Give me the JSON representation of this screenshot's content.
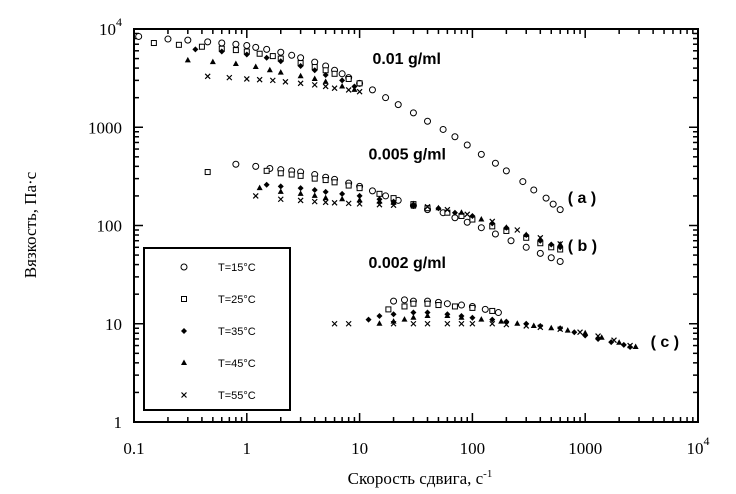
{
  "chart_data": {
    "type": "scatter",
    "xscale": "log",
    "yscale": "log",
    "xlim": [
      0.1,
      10000
    ],
    "ylim": [
      1,
      10000
    ],
    "xlabel": "Скорость сдвига, с",
    "xlabel_exp": "-1",
    "ylabel": "Вязкость, Па·с",
    "x_ticks": [
      {
        "value": 0.1,
        "label": "0.1"
      },
      {
        "value": 1,
        "label": "1"
      },
      {
        "value": 10,
        "label": "10"
      },
      {
        "value": 100,
        "label": "100"
      },
      {
        "value": 1000,
        "label": "1000"
      },
      {
        "value": 10000,
        "label": "10",
        "exp": "4"
      }
    ],
    "y_ticks": [
      {
        "value": 1,
        "label": "1"
      },
      {
        "value": 10,
        "label": "10"
      },
      {
        "value": 100,
        "label": "100"
      },
      {
        "value": 1000,
        "label": "1000"
      },
      {
        "value": 10000,
        "label": "10",
        "exp": "4"
      }
    ],
    "legend_position": "lower-left",
    "annotations": [
      {
        "text": "0.01   g/ml",
        "x": 13,
        "y": 4400
      },
      {
        "text": "0.005   g/ml",
        "x": 12,
        "y": 470
      },
      {
        "text": "0.002   g/ml",
        "x": 12,
        "y": 37
      },
      {
        "text": "( a )",
        "x": 700,
        "y": 170
      },
      {
        "text": "( b )",
        "x": 700,
        "y": 55
      },
      {
        "text": "( c )",
        "x": 3800,
        "y": 5.8
      }
    ],
    "series": [
      {
        "name": "T=15°C",
        "marker": "circle",
        "points": [
          [
            0.11,
            8400
          ],
          [
            0.2,
            7900
          ],
          [
            0.3,
            7700
          ],
          [
            0.45,
            7400
          ],
          [
            0.6,
            7200
          ],
          [
            0.8,
            7000
          ],
          [
            1.0,
            6800
          ],
          [
            1.2,
            6500
          ],
          [
            1.5,
            6200
          ],
          [
            2,
            5800
          ],
          [
            2.5,
            5400
          ],
          [
            3,
            5100
          ],
          [
            4,
            4600
          ],
          [
            5,
            4200
          ],
          [
            6,
            3800
          ],
          [
            7,
            3500
          ],
          [
            8,
            3200
          ],
          [
            10,
            2800
          ],
          [
            13,
            2400
          ],
          [
            17,
            2000
          ],
          [
            22,
            1700
          ],
          [
            30,
            1400
          ],
          [
            40,
            1150
          ],
          [
            55,
            950
          ],
          [
            70,
            800
          ],
          [
            90,
            660
          ],
          [
            120,
            530
          ],
          [
            160,
            430
          ],
          [
            200,
            360
          ],
          [
            280,
            280
          ],
          [
            350,
            230
          ],
          [
            450,
            190
          ],
          [
            520,
            165
          ],
          [
            600,
            145
          ],
          [
            0.8,
            420
          ],
          [
            1.2,
            400
          ],
          [
            1.6,
            380
          ],
          [
            2,
            370
          ],
          [
            2.5,
            360
          ],
          [
            3,
            350
          ],
          [
            4,
            330
          ],
          [
            5,
            310
          ],
          [
            6,
            295
          ],
          [
            8,
            270
          ],
          [
            10,
            250
          ],
          [
            13,
            225
          ],
          [
            17,
            200
          ],
          [
            22,
            180
          ],
          [
            30,
            160
          ],
          [
            40,
            145
          ],
          [
            55,
            135
          ],
          [
            70,
            120
          ],
          [
            90,
            108
          ],
          [
            120,
            95
          ],
          [
            160,
            82
          ],
          [
            220,
            70
          ],
          [
            300,
            60
          ],
          [
            400,
            52
          ],
          [
            500,
            47
          ],
          [
            600,
            43
          ],
          [
            20,
            17
          ],
          [
            25,
            17.5
          ],
          [
            30,
            17
          ],
          [
            40,
            17
          ],
          [
            50,
            16.5
          ],
          [
            60,
            16
          ],
          [
            80,
            15.5
          ],
          [
            100,
            15
          ],
          [
            130,
            14
          ],
          [
            170,
            13
          ]
        ]
      },
      {
        "name": "T=25°C",
        "marker": "square",
        "points": [
          [
            0.15,
            7200
          ],
          [
            0.25,
            6900
          ],
          [
            0.4,
            6600
          ],
          [
            0.6,
            6300
          ],
          [
            0.8,
            6100
          ],
          [
            1.0,
            5900
          ],
          [
            1.3,
            5600
          ],
          [
            1.7,
            5300
          ],
          [
            2,
            5000
          ],
          [
            3,
            4500
          ],
          [
            4,
            4100
          ],
          [
            5,
            3800
          ],
          [
            6,
            3500
          ],
          [
            8,
            3100
          ],
          [
            10,
            2800
          ],
          [
            0.45,
            350
          ],
          [
            1.5,
            360
          ],
          [
            2,
            340
          ],
          [
            2.5,
            330
          ],
          [
            3,
            320
          ],
          [
            4,
            300
          ],
          [
            5,
            290
          ],
          [
            6,
            275
          ],
          [
            8,
            255
          ],
          [
            10,
            240
          ],
          [
            15,
            210
          ],
          [
            20,
            190
          ],
          [
            30,
            165
          ],
          [
            40,
            150
          ],
          [
            60,
            135
          ],
          [
            80,
            125
          ],
          [
            100,
            115
          ],
          [
            150,
            98
          ],
          [
            200,
            88
          ],
          [
            300,
            75
          ],
          [
            400,
            66
          ],
          [
            500,
            60
          ],
          [
            600,
            57
          ],
          [
            18,
            14
          ],
          [
            25,
            15
          ],
          [
            30,
            16
          ],
          [
            40,
            16
          ],
          [
            50,
            15.5
          ],
          [
            70,
            15
          ],
          [
            100,
            14.5
          ],
          [
            150,
            13.5
          ]
        ]
      },
      {
        "name": "T=35°C",
        "marker": "diamond",
        "points": [
          [
            0.35,
            6200
          ],
          [
            0.6,
            5900
          ],
          [
            1.0,
            5500
          ],
          [
            1.5,
            5100
          ],
          [
            2,
            4700
          ],
          [
            3,
            4200
          ],
          [
            4,
            3800
          ],
          [
            5,
            3400
          ],
          [
            7,
            3000
          ],
          [
            9,
            2600
          ],
          [
            1.5,
            260
          ],
          [
            2,
            250
          ],
          [
            3,
            240
          ],
          [
            4,
            230
          ],
          [
            5,
            220
          ],
          [
            7,
            210
          ],
          [
            10,
            200
          ],
          [
            15,
            185
          ],
          [
            20,
            175
          ],
          [
            30,
            160
          ],
          [
            50,
            150
          ],
          [
            70,
            135
          ],
          [
            100,
            125
          ],
          [
            150,
            105
          ],
          [
            200,
            95
          ],
          [
            300,
            80
          ],
          [
            400,
            70
          ],
          [
            500,
            64
          ],
          [
            600,
            60
          ],
          [
            12,
            11
          ],
          [
            15,
            12
          ],
          [
            20,
            12.5
          ],
          [
            30,
            13
          ],
          [
            40,
            13
          ],
          [
            60,
            12.5
          ],
          [
            80,
            12
          ],
          [
            100,
            11.5
          ],
          [
            150,
            11
          ],
          [
            200,
            10.5
          ],
          [
            300,
            10
          ],
          [
            400,
            9.5
          ],
          [
            600,
            9
          ],
          [
            800,
            8.2
          ],
          [
            1000,
            7.6
          ],
          [
            1300,
            7
          ],
          [
            1700,
            6.5
          ],
          [
            2200,
            6.1
          ],
          [
            2500,
            5.8
          ]
        ]
      },
      {
        "name": "T=45°C",
        "marker": "triangle",
        "points": [
          [
            0.3,
            4800
          ],
          [
            0.5,
            4600
          ],
          [
            0.8,
            4400
          ],
          [
            1.2,
            4100
          ],
          [
            1.6,
            3800
          ],
          [
            2,
            3600
          ],
          [
            3,
            3300
          ],
          [
            4,
            3100
          ],
          [
            5,
            2900
          ],
          [
            7,
            2600
          ],
          [
            9,
            2400
          ],
          [
            1.3,
            240
          ],
          [
            2,
            220
          ],
          [
            3,
            210
          ],
          [
            4,
            200
          ],
          [
            5,
            190
          ],
          [
            7,
            185
          ],
          [
            10,
            180
          ],
          [
            15,
            175
          ],
          [
            20,
            170
          ],
          [
            30,
            165
          ],
          [
            50,
            150
          ],
          [
            80,
            135
          ],
          [
            120,
            115
          ],
          [
            200,
            95
          ],
          [
            300,
            80
          ],
          [
            400,
            72
          ],
          [
            600,
            64
          ],
          [
            15,
            10
          ],
          [
            20,
            10.5
          ],
          [
            25,
            11
          ],
          [
            30,
            11.5
          ],
          [
            40,
            12
          ],
          [
            60,
            12
          ],
          [
            80,
            11.5
          ],
          [
            120,
            11
          ],
          [
            180,
            10.5
          ],
          [
            250,
            10
          ],
          [
            350,
            9.5
          ],
          [
            500,
            9
          ],
          [
            700,
            8.5
          ],
          [
            1000,
            8
          ],
          [
            1400,
            7.2
          ],
          [
            2000,
            6.4
          ],
          [
            2800,
            5.8
          ]
        ]
      },
      {
        "name": "T=55°C",
        "marker": "x",
        "points": [
          [
            0.45,
            3300
          ],
          [
            0.7,
            3200
          ],
          [
            1.0,
            3100
          ],
          [
            1.3,
            3050
          ],
          [
            1.7,
            3000
          ],
          [
            2.2,
            2900
          ],
          [
            3,
            2800
          ],
          [
            4,
            2700
          ],
          [
            5,
            2600
          ],
          [
            6,
            2500
          ],
          [
            8,
            2400
          ],
          [
            10,
            2300
          ],
          [
            1.2,
            200
          ],
          [
            2,
            185
          ],
          [
            3,
            180
          ],
          [
            4,
            175
          ],
          [
            5,
            172
          ],
          [
            6,
            170
          ],
          [
            8,
            168
          ],
          [
            10,
            166
          ],
          [
            15,
            163
          ],
          [
            20,
            161
          ],
          [
            30,
            158
          ],
          [
            40,
            155
          ],
          [
            60,
            145
          ],
          [
            90,
            130
          ],
          [
            150,
            110
          ],
          [
            250,
            90
          ],
          [
            400,
            75
          ],
          [
            600,
            65
          ],
          [
            6,
            10
          ],
          [
            8,
            10
          ],
          [
            20,
            10
          ],
          [
            30,
            10
          ],
          [
            40,
            10
          ],
          [
            60,
            10
          ],
          [
            80,
            10
          ],
          [
            100,
            10
          ],
          [
            150,
            10
          ],
          [
            200,
            9.8
          ],
          [
            300,
            9.5
          ],
          [
            400,
            9.2
          ],
          [
            600,
            8.8
          ],
          [
            900,
            8.2
          ],
          [
            1300,
            7.5
          ],
          [
            1800,
            6.8
          ],
          [
            2500,
            6
          ]
        ]
      }
    ]
  }
}
